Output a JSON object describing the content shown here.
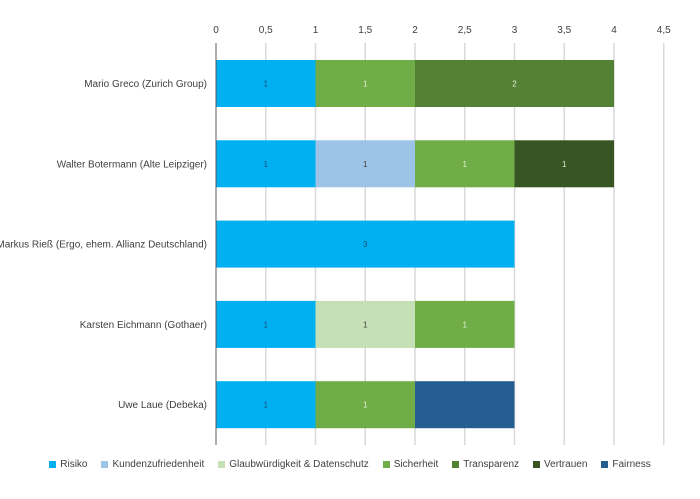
{
  "chart_data": {
    "type": "bar",
    "orientation": "horizontal",
    "stacked": true,
    "title": "",
    "xlabel": "",
    "ylabel": "",
    "xlim": [
      0,
      4.5
    ],
    "x_ticks": [
      "0",
      "0,5",
      "1",
      "1,5",
      "2",
      "2,5",
      "3",
      "3,5",
      "4",
      "4,5"
    ],
    "x_tick_values": [
      0,
      0.5,
      1,
      1.5,
      2,
      2.5,
      3,
      3.5,
      4,
      4.5
    ],
    "grid": true,
    "legend_position": "bottom",
    "categories": [
      "Mario Greco (Zurich Group)",
      "Walter Botermann (Alte Leipziger)",
      "Markus Rieß (Ergo, ehem. Allianz Deutschland)",
      "Karsten Eichmann (Gothaer)",
      "Uwe Laue (Debeka)"
    ],
    "series": [
      {
        "name": "Risiko",
        "color": "#00B0F0",
        "label_color": "#1F4E79",
        "values": [
          1,
          1,
          3,
          1,
          1
        ],
        "show_labels": true
      },
      {
        "name": "Kundenzufriedenheit",
        "color": "#9DC3E6",
        "label_color": "#404040",
        "values": [
          0,
          1,
          0,
          0,
          0
        ],
        "show_labels": true
      },
      {
        "name": "Glaubwürdigkeit & Datenschutz",
        "color": "#C5E0B4",
        "label_color": "#404040",
        "values": [
          0,
          0,
          0,
          1,
          0
        ],
        "show_labels": true
      },
      {
        "name": "Sicherheit",
        "color": "#70AD47",
        "label_color": "#E2F0D9",
        "values": [
          1,
          1,
          0,
          1,
          1
        ],
        "show_labels": true
      },
      {
        "name": "Transparenz",
        "color": "#548235",
        "label_color": "#E2F0D9",
        "values": [
          2,
          0,
          0,
          0,
          0
        ],
        "show_labels": true
      },
      {
        "name": "Vertrauen",
        "color": "#375623",
        "label_color": "#E2F0D9",
        "values": [
          0,
          1,
          0,
          0,
          0
        ],
        "show_labels": true
      },
      {
        "name": "Fairness",
        "color": "#255E91",
        "label_color": "#255E91",
        "values": [
          0,
          0,
          0,
          0,
          1
        ],
        "show_labels": false
      }
    ]
  },
  "colors": {
    "grid": "#D9D9D9",
    "axis": "#595959",
    "text": "#404040"
  }
}
